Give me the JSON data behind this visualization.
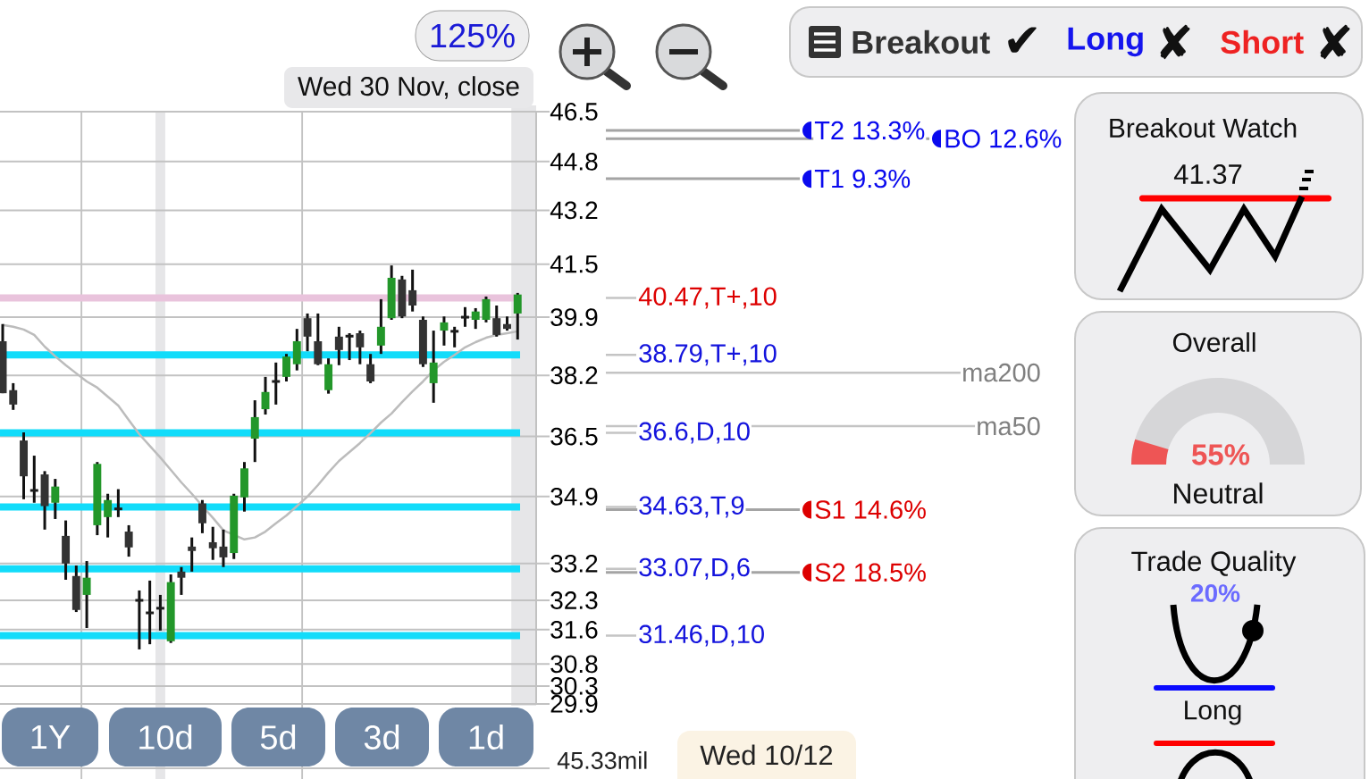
{
  "chart_data": [
    {
      "type": "candlestick",
      "categories": [
        null,
        null,
        null,
        null,
        null,
        null,
        null,
        null,
        null,
        null,
        null,
        null,
        null,
        null,
        null,
        null,
        null,
        null,
        null,
        null,
        null,
        null,
        null,
        null,
        null,
        null,
        null,
        null,
        null,
        null,
        null,
        null,
        null,
        null,
        null,
        null,
        null,
        null,
        null,
        null,
        null,
        null,
        null,
        null,
        null,
        null,
        null,
        null,
        null,
        null
      ],
      "ohlc": [
        [
          39.19,
          39.69,
          37.7,
          37.7
        ],
        [
          37.78,
          37.98,
          37.23,
          37.38
        ],
        [
          36.39,
          36.61,
          34.83,
          35.43
        ],
        [
          35.06,
          35.98,
          34.74,
          35.06
        ],
        [
          35.48,
          35.57,
          34.05,
          34.65
        ],
        [
          34.74,
          35.36,
          34.32,
          35.16
        ],
        [
          33.89,
          34.28,
          32.8,
          33.2
        ],
        [
          32.89,
          33.15,
          32.02,
          32.07
        ],
        [
          32.43,
          33.26,
          31.64,
          32.85
        ],
        [
          34.16,
          35.81,
          33.91,
          35.76
        ],
        [
          34.37,
          34.97,
          33.85,
          34.81
        ],
        [
          34.58,
          35.09,
          34.37,
          34.58
        ],
        [
          34.0,
          34.16,
          33.37,
          33.6
        ],
        [
          32.3,
          32.54,
          31.14,
          32.3
        ],
        [
          32.0,
          32.78,
          31.26,
          32.0
        ],
        [
          32.11,
          32.43,
          31.58,
          32.11
        ],
        [
          31.33,
          32.93,
          31.29,
          32.74
        ],
        [
          33.0,
          33.11,
          32.43,
          32.85
        ],
        [
          33.62,
          33.85,
          33.0,
          33.51
        ],
        [
          34.72,
          34.81,
          33.96,
          34.21
        ],
        [
          33.73,
          34.12,
          33.29,
          33.58
        ],
        [
          33.62,
          34.05,
          33.11,
          33.35
        ],
        [
          33.46,
          34.97,
          33.31,
          34.92
        ],
        [
          34.88,
          35.81,
          34.51,
          35.64
        ],
        [
          36.44,
          37.5,
          35.81,
          37.03
        ],
        [
          37.25,
          38.16,
          37.1,
          37.73
        ],
        [
          38.03,
          38.57,
          37.38,
          38.03
        ],
        [
          38.16,
          38.82,
          38.03,
          38.74
        ],
        [
          38.52,
          39.55,
          38.34,
          39.19
        ],
        [
          39.87,
          40.0,
          38.9,
          39.32
        ],
        [
          39.19,
          40.0,
          38.49,
          38.52
        ],
        [
          37.78,
          38.69,
          37.68,
          38.52
        ],
        [
          39.32,
          39.61,
          38.49,
          38.93
        ],
        [
          39.34,
          39.42,
          38.64,
          39.34
        ],
        [
          39.42,
          39.5,
          38.52,
          39.01
        ],
        [
          38.52,
          38.82,
          37.98,
          38.03
        ],
        [
          39.06,
          40.43,
          38.82,
          39.61
        ],
        [
          39.87,
          41.46,
          39.82,
          41.08
        ],
        [
          41.03,
          41.14,
          39.87,
          39.92
        ],
        [
          40.7,
          41.33,
          40.06,
          40.24
        ],
        [
          39.82,
          39.92,
          38.44,
          38.52
        ],
        [
          37.98,
          39.5,
          37.43,
          38.57
        ],
        [
          39.5,
          39.92,
          39.06,
          39.74
        ],
        [
          39.48,
          39.61,
          39.01,
          39.48
        ],
        [
          39.9,
          40.19,
          39.61,
          39.9
        ],
        [
          39.82,
          40.16,
          39.55,
          40.06
        ],
        [
          39.82,
          40.51,
          39.74,
          40.43
        ],
        [
          39.87,
          40.24,
          39.32,
          39.37
        ],
        [
          39.69,
          39.92,
          39.5,
          39.55
        ],
        [
          40.0,
          40.62,
          39.24,
          40.57
        ]
      ],
      "colors": [
        "#333333",
        "#333333",
        "#333333",
        "#1c1c1c",
        "#333333",
        "#23972a",
        "#333333",
        "#333333",
        "#23972a",
        "#23972a",
        "#23972a",
        "#1c1c1c",
        "#333333",
        "#1c1c1c",
        "#1c1c1c",
        "#1c1c1c",
        "#23972a",
        "#333333",
        "#333333",
        "#333333",
        "#333333",
        "#333333",
        "#23972a",
        "#23972a",
        "#23972a",
        "#23972a",
        "#1c1c1c",
        "#23972a",
        "#23972a",
        "#333333",
        "#333333",
        "#23972a",
        "#333333",
        "#1c1c1c",
        "#333333",
        "#333333",
        "#23972a",
        "#23972a",
        "#333333",
        "#333333",
        "#333333",
        "#23972a",
        "#23972a",
        "#1c1c1c",
        "#1c1c1c",
        "#23972a",
        "#23972a",
        "#333333",
        "#333333",
        "#23972a"
      ],
      "series": [
        {
          "type": "line",
          "color": "#bcbcbc",
          "values": [
            39.66,
            39.61,
            39.53,
            39.37,
            39.03,
            38.75,
            38.49,
            38.26,
            38.03,
            37.85,
            37.6,
            37.35,
            36.95,
            36.56,
            36.24,
            35.93,
            35.6,
            35.27,
            34.97,
            34.65,
            34.35,
            34.03,
            null,
            33.8,
            33.85,
            34.0,
            34.21,
            34.41,
            34.65,
            34.9,
            35.2,
            35.53,
            35.84,
            36.08,
            36.32,
            36.59,
            36.88,
            37.13,
            37.45,
            37.75,
            38.03,
            38.34,
            38.59,
            38.79,
            39.01,
            39.16,
            39.29,
            39.37,
            39.42,
            39.48
          ]
        }
      ],
      "ylim": [
        29.9,
        46.5
      ],
      "yticks": [
        46.5,
        44.8,
        43.2,
        41.5,
        39.9,
        38.2,
        36.5,
        34.9,
        33.2,
        32.3,
        31.6,
        30.8,
        30.3,
        29.9
      ],
      "log": true,
      "grid": "y",
      "tick_labels": "y",
      "ref_lines": [
        {
          "axis": "y",
          "value": 40.47,
          "color": "#e9c3dc"
        },
        {
          "axis": "y",
          "value": 38.79,
          "color": "#12dcfa"
        },
        {
          "axis": "y",
          "value": 36.6,
          "color": "#12dcfa"
        },
        {
          "axis": "y",
          "value": 34.63,
          "color": "#12dcfa"
        },
        {
          "axis": "y",
          "value": 33.07,
          "color": "#12dcfa"
        },
        {
          "axis": "y",
          "value": 31.46,
          "color": "#12dcfa"
        },
        {
          "axis": "y",
          "value": 40.47,
          "label": "40.47,T+,10",
          "color": "#c4c4c4"
        },
        {
          "axis": "y",
          "value": 38.79,
          "label": "38.79,T+,10",
          "color": "#c4c4c4"
        },
        {
          "axis": "y",
          "value": 36.6,
          "label": "36.6,D,10",
          "color": "#c4c4c4"
        },
        {
          "axis": "y",
          "value": 34.63,
          "label": "34.63,T,9",
          "color": "#c4c4c4"
        },
        {
          "axis": "y",
          "value": 33.07,
          "label": "33.07,D,6",
          "color": "#c4c4c4"
        },
        {
          "axis": "y",
          "value": 31.46,
          "label": "31.46,D,10",
          "color": "#c4c4c4"
        },
        {
          "axis": "y",
          "value": 45.85,
          "label": "T2 13.3%",
          "color": "#a4a4a4"
        },
        {
          "axis": "y",
          "value": 45.57,
          "label": "BO 12.6%",
          "color": "#a4a4a4"
        },
        {
          "axis": "y",
          "value": 44.23,
          "label": "T1 9.3%",
          "color": "#a4a4a4"
        },
        {
          "axis": "y",
          "value": 34.56,
          "label": "S1 14.6%",
          "color": "#a4a4a4"
        },
        {
          "axis": "y",
          "value": 32.98,
          "label": "S2 18.5%",
          "color": "#a4a4a4"
        },
        {
          "axis": "y",
          "value": 38.28,
          "label": "ma200",
          "color": "#c4c4c4"
        },
        {
          "axis": "y",
          "value": 36.78,
          "label": "ma50",
          "color": "#c4c4c4"
        }
      ],
      "annotations": [
        "125%",
        "Wed 30 Nov, close",
        "1Y",
        "10d",
        "5d",
        "3d",
        "1d",
        "Wed 10/12",
        "45.33mil"
      ]
    },
    {
      "type": "other",
      "annotations": [
        "Breakout",
        "✔",
        "Long",
        "✘",
        "Short",
        "✘"
      ]
    },
    {
      "type": "other",
      "title": "Breakout Watch",
      "annotations": [
        "41.37"
      ]
    },
    {
      "type": "other",
      "title": "Overall",
      "annotations": [
        "55%",
        "Neutral"
      ]
    },
    {
      "type": "other",
      "title": "Trade Quality",
      "annotations": [
        "20%",
        "Long"
      ]
    }
  ]
}
